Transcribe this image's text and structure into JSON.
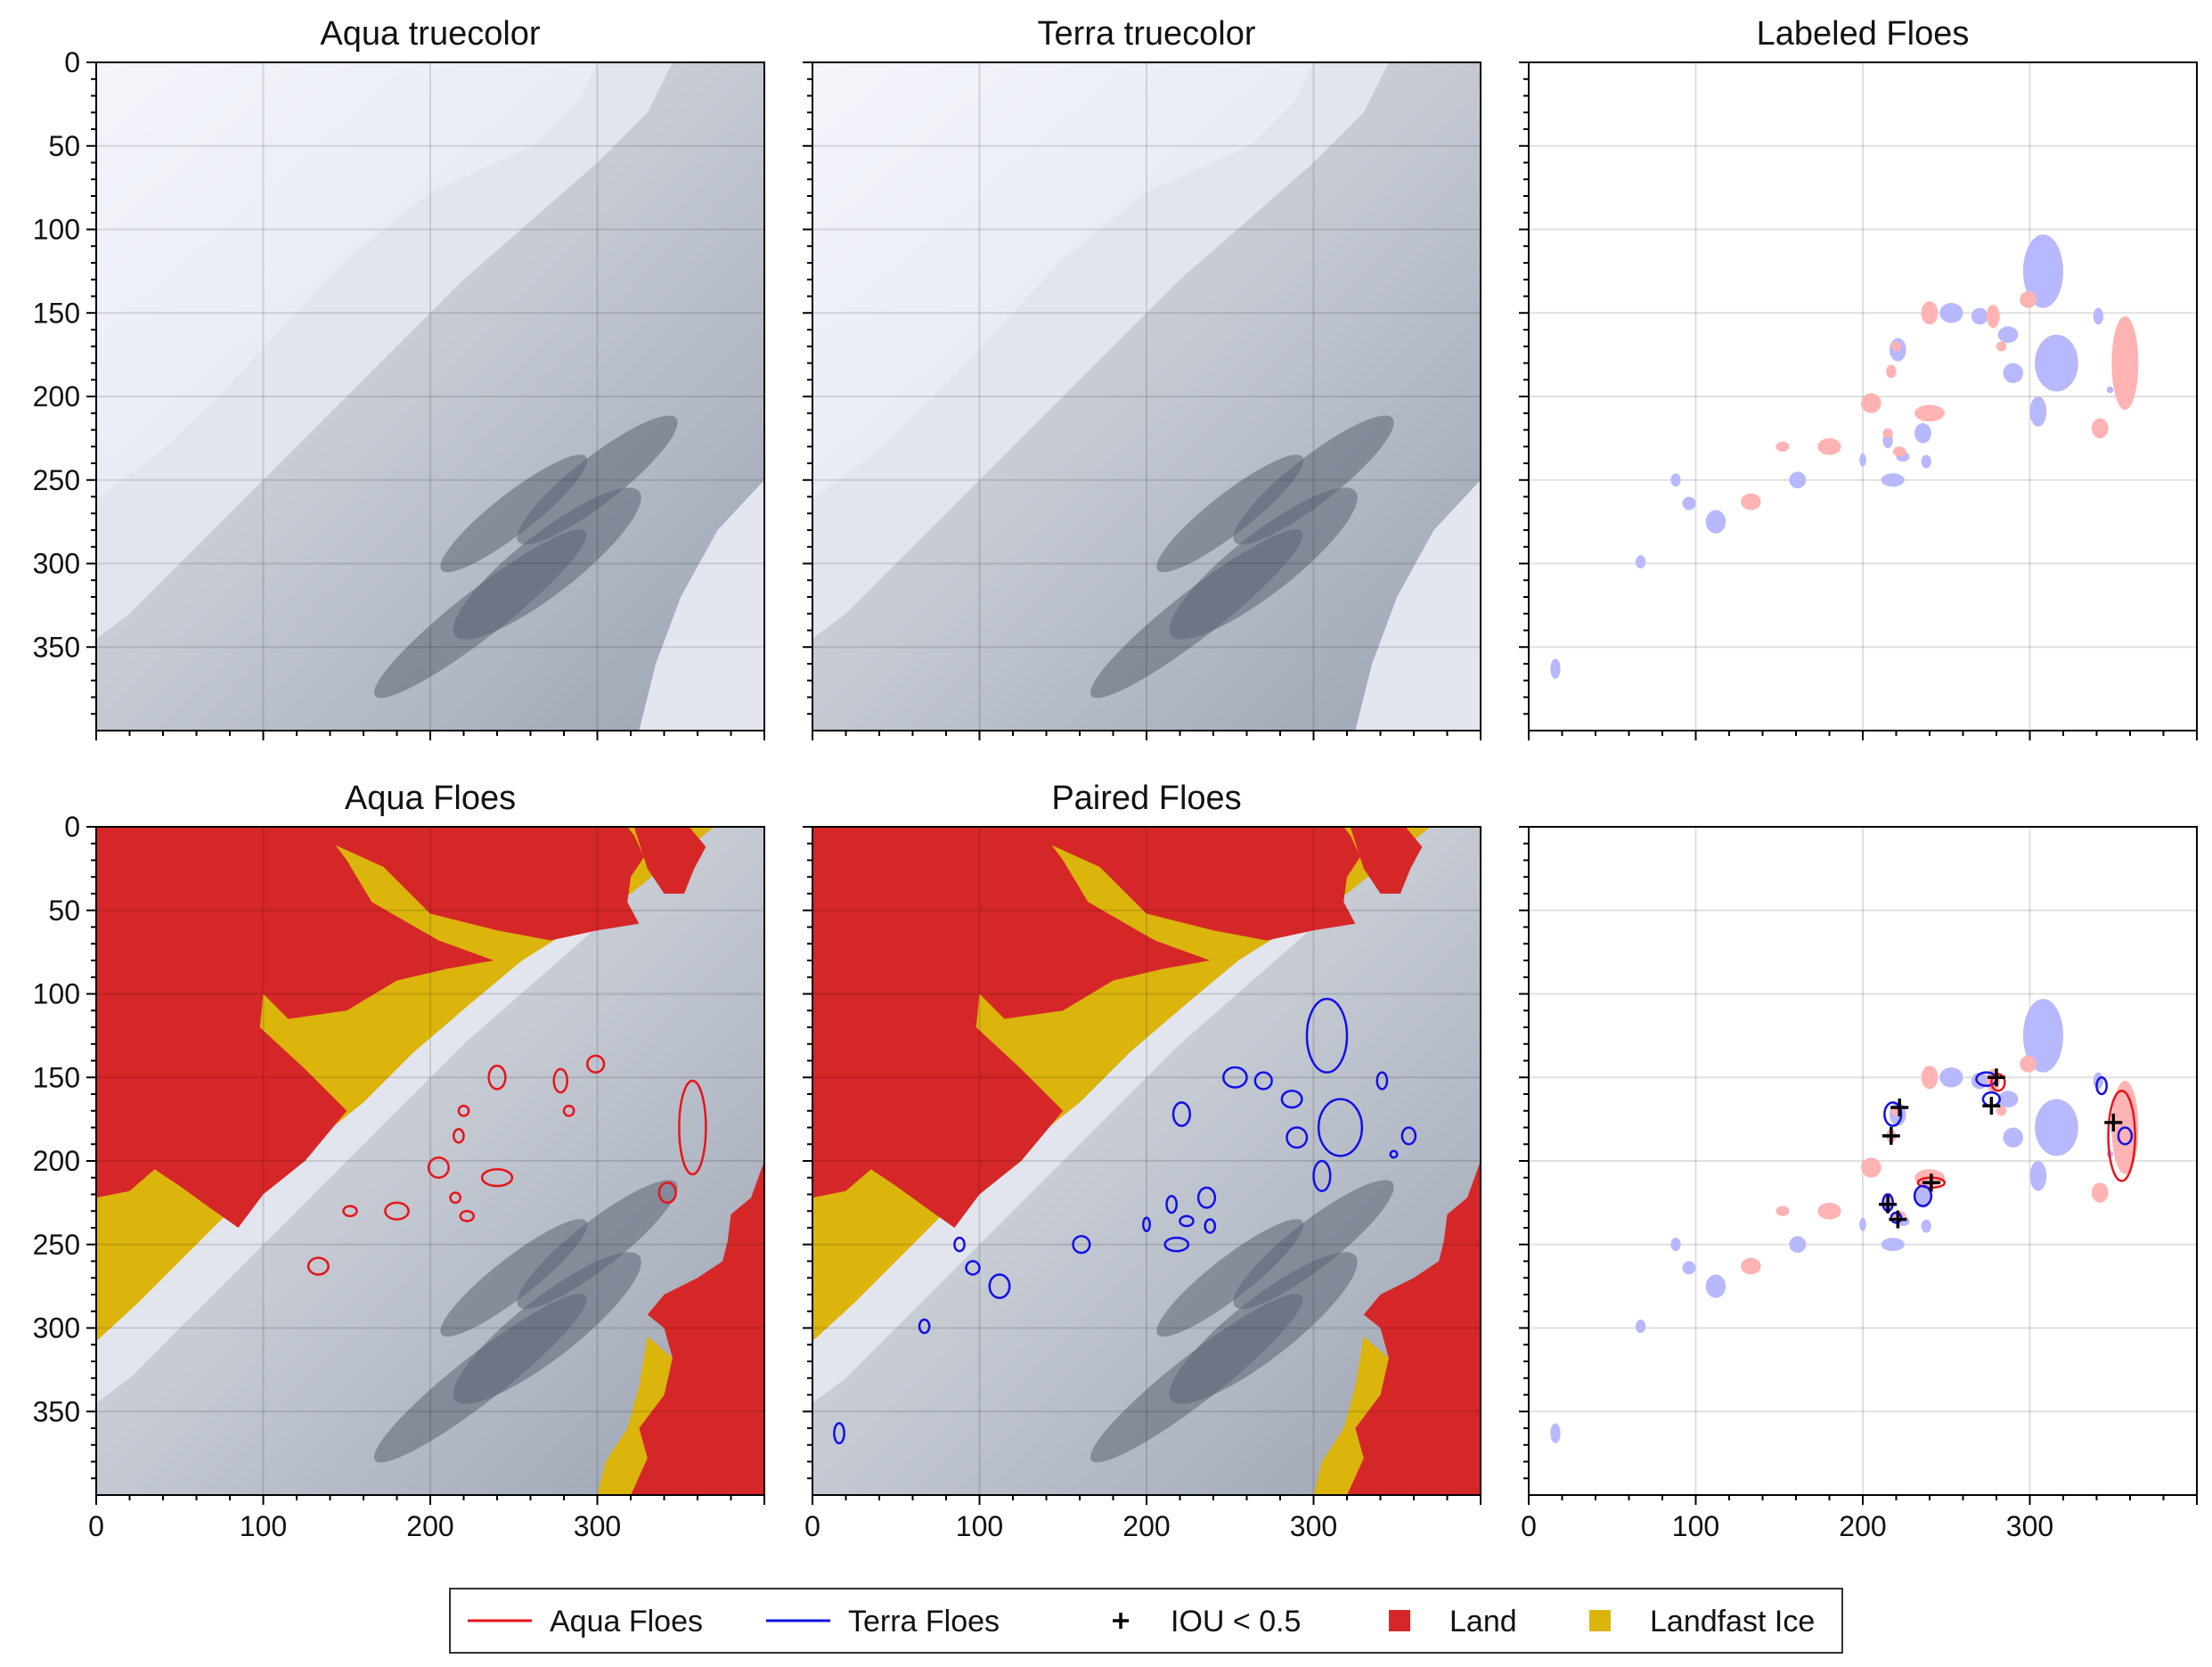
{
  "figure": {
    "panels": [
      {
        "id": "aqua-truecolor",
        "title": "Aqua truecolor",
        "type": "image",
        "show_x_labels": false,
        "show_y_labels": true
      },
      {
        "id": "terra-truecolor",
        "title": "Terra truecolor",
        "type": "image",
        "show_x_labels": false,
        "show_y_labels": false
      },
      {
        "id": "labeled-floes",
        "title": "Labeled Floes",
        "type": "labels",
        "show_x_labels": false,
        "show_y_labels": false
      },
      {
        "id": "aqua-floes",
        "title": "Aqua Floes",
        "type": "image-overlay",
        "overlay": "aqua",
        "show_x_labels": true,
        "show_y_labels": true
      },
      {
        "id": "paired-floes",
        "title": "Paired Floes",
        "type": "image-overlay",
        "overlay": "terra",
        "show_x_labels": true,
        "show_y_labels": false
      },
      {
        "id": "iou-floes",
        "title": "",
        "type": "labels-outlined",
        "show_x_labels": true,
        "show_y_labels": false
      }
    ],
    "axes": {
      "xlim": [
        0,
        400
      ],
      "ylim": [
        400,
        0
      ],
      "x_ticks": [
        0,
        100,
        200,
        300
      ],
      "y_ticks": [
        0,
        50,
        100,
        150,
        200,
        250,
        300,
        350
      ],
      "grid": true
    },
    "colors": {
      "aqua_floe": "#e8141b",
      "terra_floe": "#1010e8",
      "aqua_fill": "#ffb3b3",
      "terra_fill": "#b8b8ff",
      "land": "#d62728",
      "landfast_ice": "#dbb40c",
      "marker": "#000000"
    },
    "legend": {
      "placement": "bottom-center",
      "entries": [
        {
          "label": "Aqua Floes",
          "kind": "line",
          "color": "#e8141b"
        },
        {
          "label": "Terra Floes",
          "kind": "line",
          "color": "#1010e8"
        },
        {
          "label": "IOU < 0.5",
          "kind": "plus",
          "color": "#000000"
        },
        {
          "label": "Land",
          "kind": "square",
          "color": "#d62728"
        },
        {
          "label": "Landfast Ice",
          "kind": "square",
          "color": "#dbb40c"
        }
      ]
    }
  },
  "chart_data": {
    "type": "heatmap",
    "xlim": [
      0,
      400
    ],
    "ylim": [
      400,
      0
    ],
    "grid": true,
    "aqua_floes": [
      {
        "cx": 240,
        "cy": 150,
        "rx": 5,
        "ry": 7
      },
      {
        "cx": 278,
        "cy": 152,
        "rx": 4,
        "ry": 7
      },
      {
        "cx": 299,
        "cy": 142,
        "rx": 5,
        "ry": 5
      },
      {
        "cx": 220,
        "cy": 170,
        "rx": 3,
        "ry": 3
      },
      {
        "cx": 283,
        "cy": 170,
        "rx": 3,
        "ry": 3
      },
      {
        "cx": 217,
        "cy": 185,
        "rx": 3,
        "ry": 4
      },
      {
        "cx": 205,
        "cy": 204,
        "rx": 6,
        "ry": 6
      },
      {
        "cx": 240,
        "cy": 210,
        "rx": 9,
        "ry": 5
      },
      {
        "cx": 357,
        "cy": 180,
        "rx": 8,
        "ry": 28
      },
      {
        "cx": 342,
        "cy": 219,
        "rx": 5,
        "ry": 6
      },
      {
        "cx": 215,
        "cy": 222,
        "rx": 3,
        "ry": 3
      },
      {
        "cx": 180,
        "cy": 230,
        "rx": 7,
        "ry": 5
      },
      {
        "cx": 152,
        "cy": 230,
        "rx": 4,
        "ry": 3
      },
      {
        "cx": 222,
        "cy": 233,
        "rx": 4,
        "ry": 3
      },
      {
        "cx": 133,
        "cy": 263,
        "rx": 6,
        "ry": 5
      }
    ],
    "terra_floes": [
      {
        "cx": 308,
        "cy": 125,
        "rx": 12,
        "ry": 22
      },
      {
        "cx": 253,
        "cy": 150,
        "rx": 7,
        "ry": 6
      },
      {
        "cx": 270,
        "cy": 152,
        "rx": 5,
        "ry": 5
      },
      {
        "cx": 287,
        "cy": 163,
        "rx": 6,
        "ry": 5
      },
      {
        "cx": 341,
        "cy": 152,
        "rx": 3,
        "ry": 5
      },
      {
        "cx": 221,
        "cy": 172,
        "rx": 5,
        "ry": 7
      },
      {
        "cx": 290,
        "cy": 186,
        "rx": 6,
        "ry": 6
      },
      {
        "cx": 316,
        "cy": 180,
        "rx": 13,
        "ry": 17
      },
      {
        "cx": 357,
        "cy": 185,
        "rx": 4,
        "ry": 5
      },
      {
        "cx": 348,
        "cy": 196,
        "rx": 2,
        "ry": 2
      },
      {
        "cx": 305,
        "cy": 209,
        "rx": 5,
        "ry": 9
      },
      {
        "cx": 215,
        "cy": 226,
        "rx": 3,
        "ry": 5
      },
      {
        "cx": 236,
        "cy": 222,
        "rx": 5,
        "ry": 6
      },
      {
        "cx": 224,
        "cy": 236,
        "rx": 4,
        "ry": 3
      },
      {
        "cx": 238,
        "cy": 239,
        "rx": 3,
        "ry": 4
      },
      {
        "cx": 200,
        "cy": 238,
        "rx": 2,
        "ry": 4
      },
      {
        "cx": 161,
        "cy": 250,
        "rx": 5,
        "ry": 5
      },
      {
        "cx": 218,
        "cy": 250,
        "rx": 7,
        "ry": 4
      },
      {
        "cx": 88,
        "cy": 250,
        "rx": 3,
        "ry": 4
      },
      {
        "cx": 96,
        "cy": 264,
        "rx": 4,
        "ry": 4
      },
      {
        "cx": 112,
        "cy": 275,
        "rx": 6,
        "ry": 7
      },
      {
        "cx": 67,
        "cy": 299,
        "rx": 3,
        "ry": 4
      },
      {
        "cx": 16,
        "cy": 363,
        "rx": 3,
        "ry": 6
      }
    ],
    "iou_below_half": [
      {
        "x": 222,
        "y": 168
      },
      {
        "x": 217,
        "y": 185
      },
      {
        "x": 280,
        "y": 150
      },
      {
        "x": 277,
        "y": 167
      },
      {
        "x": 350,
        "y": 177
      },
      {
        "x": 241,
        "y": 213
      },
      {
        "x": 215,
        "y": 226
      },
      {
        "x": 221,
        "y": 235
      }
    ],
    "iou_outlined": [
      {
        "set": "terra",
        "cx": 218,
        "cy": 172,
        "rx": 5,
        "ry": 7
      },
      {
        "set": "terra",
        "cx": 274,
        "cy": 151,
        "rx": 6,
        "ry": 4
      },
      {
        "set": "aqua",
        "cx": 281,
        "cy": 153,
        "rx": 4,
        "ry": 5
      },
      {
        "set": "terra",
        "cx": 277,
        "cy": 163,
        "rx": 5,
        "ry": 4
      },
      {
        "set": "aqua",
        "cx": 355,
        "cy": 185,
        "rx": 8,
        "ry": 27
      },
      {
        "set": "terra",
        "cx": 343,
        "cy": 155,
        "rx": 3,
        "ry": 5
      },
      {
        "set": "terra",
        "cx": 357,
        "cy": 185,
        "rx": 4,
        "ry": 5
      },
      {
        "set": "aqua",
        "cx": 241,
        "cy": 213,
        "rx": 8,
        "ry": 3
      },
      {
        "set": "terra",
        "cx": 236,
        "cy": 221,
        "rx": 5,
        "ry": 6
      },
      {
        "set": "terra",
        "cx": 215,
        "cy": 225,
        "rx": 3,
        "ry": 5
      },
      {
        "set": "terra",
        "cx": 220,
        "cy": 234,
        "rx": 3,
        "ry": 3
      }
    ]
  }
}
